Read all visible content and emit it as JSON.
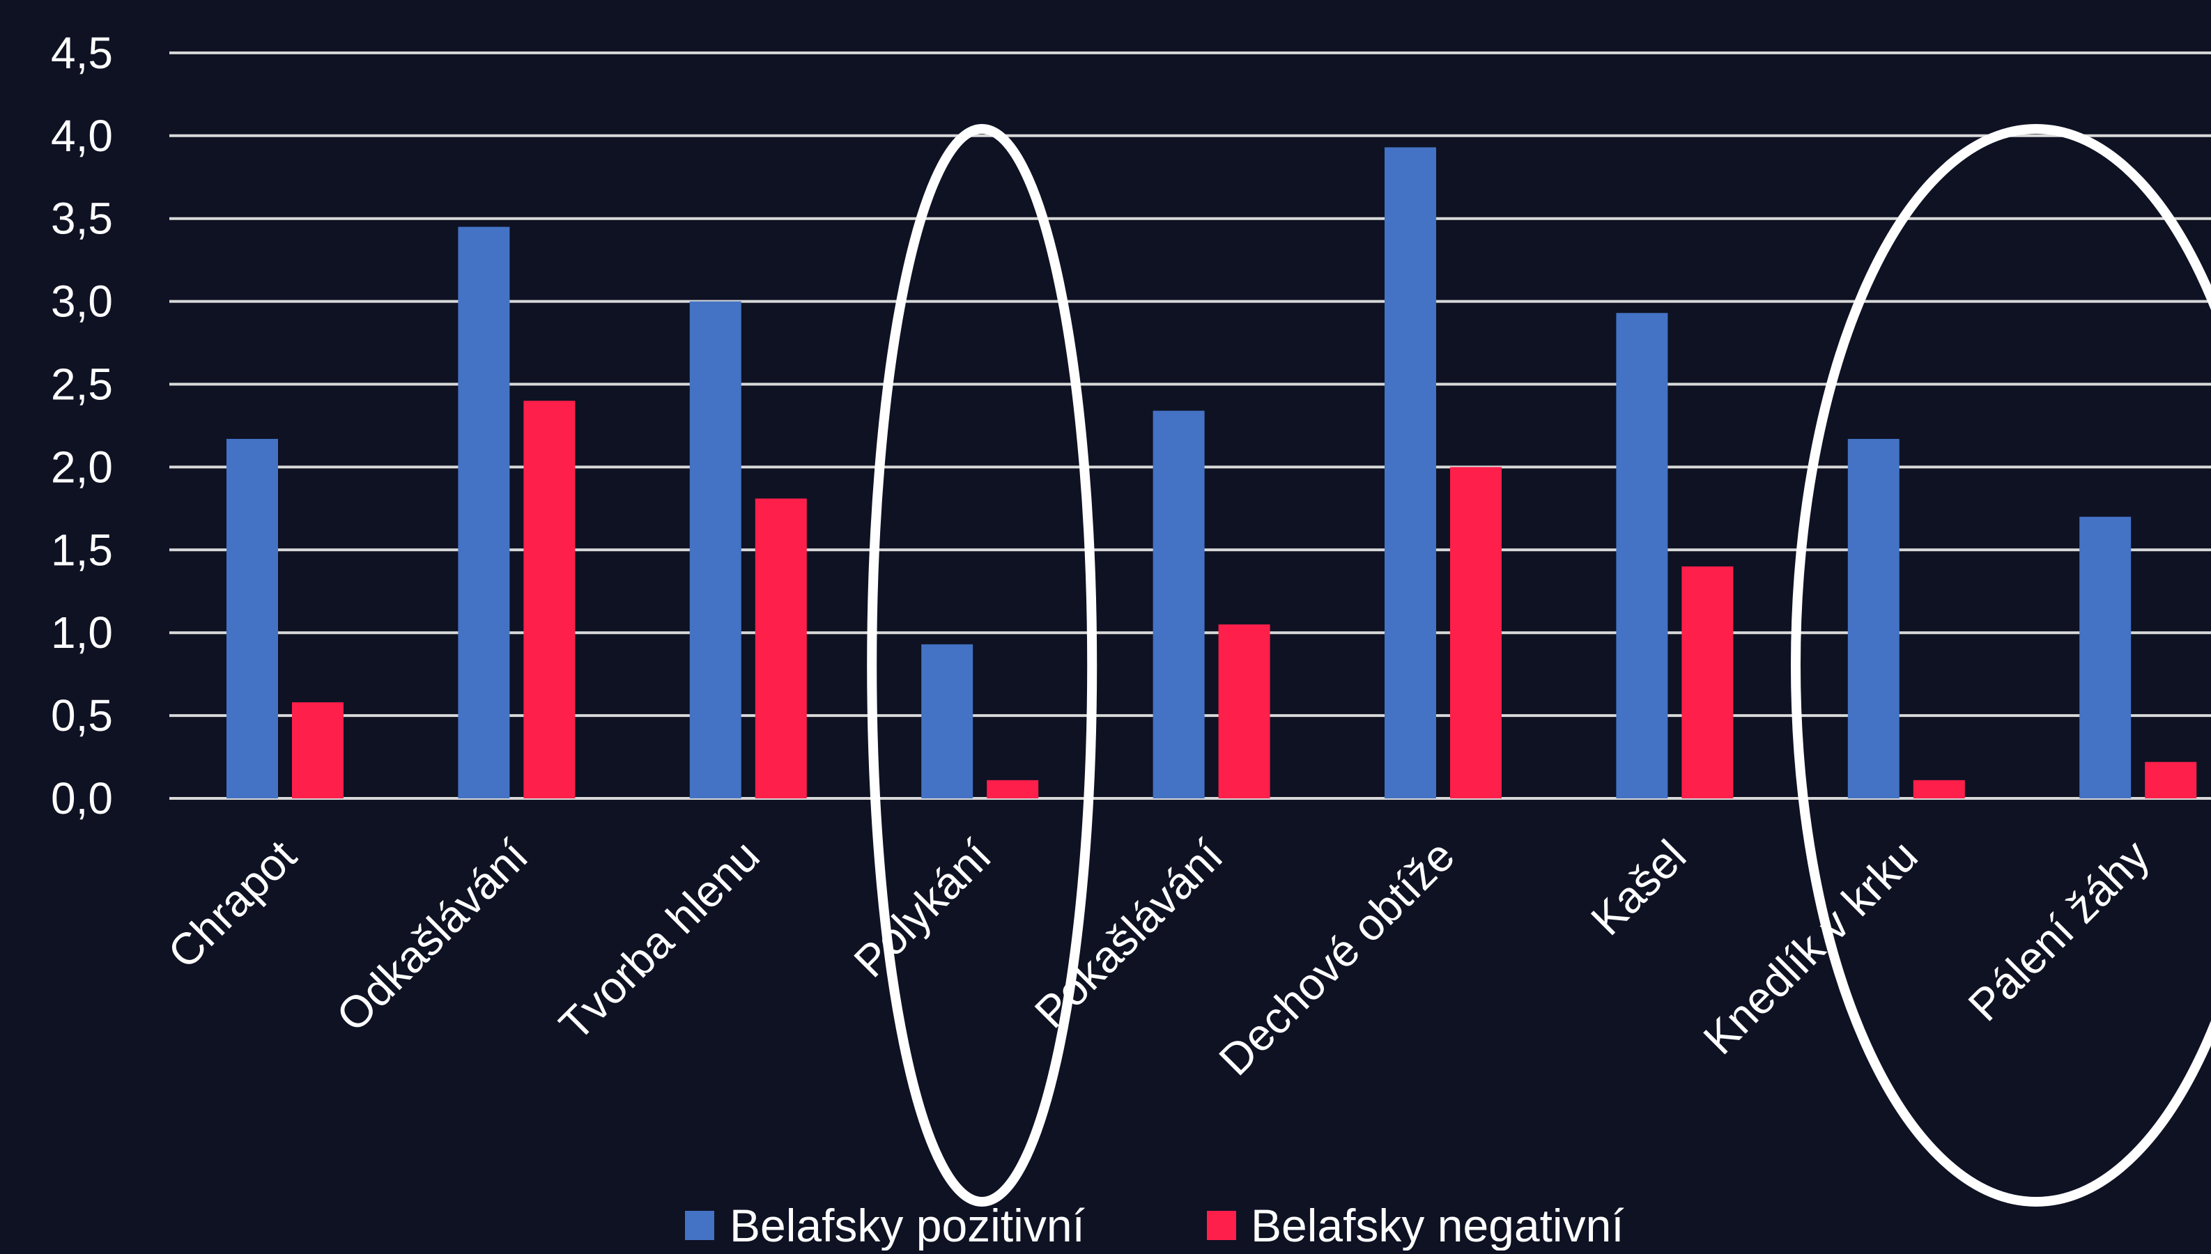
{
  "colors": {
    "background": "#0e1223",
    "grid": "#d9d9d9",
    "text": "#ffffff",
    "highlight": "#ffffff"
  },
  "chart_data": {
    "type": "bar",
    "title": "",
    "xlabel": "",
    "ylabel": "",
    "ylim": [
      0,
      4.5
    ],
    "y_ticks": [
      "0,0",
      "0,5",
      "1,0",
      "1,5",
      "2,0",
      "2,5",
      "3,0",
      "3,5",
      "4,0",
      "4,5"
    ],
    "grid": true,
    "legend_position": "bottom",
    "categories": [
      "Chrapot",
      "Odkašlávání",
      "Tvorba hlenu",
      "Polykání",
      "Pokašlávání",
      "Dechové obtíže",
      "Kašel",
      "Knedlík v krku",
      "Pálení žáhy"
    ],
    "series": [
      {
        "name": "Belafsky pozitivní",
        "color": "#4472c4",
        "values": [
          2.17,
          3.45,
          3.0,
          0.93,
          2.34,
          3.93,
          2.93,
          2.17,
          1.7
        ]
      },
      {
        "name": "Belafsky negativní",
        "color": "#ff1f4b",
        "values": [
          0.58,
          2.4,
          1.81,
          0.11,
          1.05,
          2.0,
          1.4,
          0.11,
          0.22
        ]
      }
    ],
    "highlighted_categories": [
      "Polykání",
      "Knedlík v krku",
      "Pálení žáhy"
    ]
  }
}
